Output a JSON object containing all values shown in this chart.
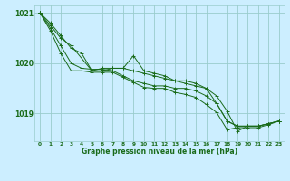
{
  "title": "Graphe pression niveau de la mer (hPa)",
  "bg_color": "#cceeff",
  "grid_color": "#99cccc",
  "line_color": "#1a6b1a",
  "xlim": [
    -0.5,
    23.5
  ],
  "ylim": [
    1018.45,
    1021.15
  ],
  "yticks": [
    1019,
    1020,
    1021
  ],
  "xtick_labels": [
    "0",
    "1",
    "2",
    "3",
    "4",
    "5",
    "6",
    "7",
    "8",
    "9",
    "10",
    "11",
    "12",
    "13",
    "14",
    "15",
    "16",
    "17",
    "18",
    "19",
    "20",
    "21",
    "22",
    "23"
  ],
  "series": [
    {
      "x": [
        0,
        1,
        2,
        3,
        4,
        5,
        6,
        7,
        8,
        9,
        10,
        11,
        12,
        13,
        14,
        15,
        16,
        17,
        18,
        19,
        20,
        21,
        22,
        23
      ],
      "y": [
        1021.0,
        1020.8,
        1020.55,
        1020.3,
        1020.2,
        1019.85,
        1019.9,
        1019.9,
        1019.9,
        1020.15,
        1019.85,
        1019.8,
        1019.75,
        1019.65,
        1019.6,
        1019.55,
        1019.5,
        1019.2,
        1018.85,
        1018.75,
        1018.75,
        1018.75,
        1018.8,
        1018.85
      ]
    },
    {
      "x": [
        0,
        1,
        2,
        3,
        5,
        6,
        7,
        8,
        9,
        10,
        11,
        12,
        13,
        14,
        15,
        16,
        17,
        18,
        19,
        20,
        21,
        22,
        23
      ],
      "y": [
        1021.0,
        1020.75,
        1020.5,
        1020.35,
        1019.85,
        1019.85,
        1019.9,
        1019.9,
        1019.85,
        1019.8,
        1019.75,
        1019.7,
        1019.65,
        1019.65,
        1019.6,
        1019.5,
        1019.35,
        1019.05,
        1018.65,
        1018.75,
        1018.75,
        1018.8,
        1018.85
      ]
    },
    {
      "x": [
        0,
        1,
        2,
        3,
        4,
        5,
        6,
        7,
        8,
        9,
        10,
        11,
        12,
        13,
        14,
        15,
        16,
        17,
        18,
        19,
        20,
        21,
        22,
        23
      ],
      "y": [
        1021.0,
        1020.7,
        1020.35,
        1020.0,
        1019.9,
        1019.88,
        1019.88,
        1019.85,
        1019.75,
        1019.65,
        1019.6,
        1019.55,
        1019.55,
        1019.5,
        1019.5,
        1019.45,
        1019.35,
        1019.2,
        1018.85,
        1018.75,
        1018.75,
        1018.75,
        1018.8,
        1018.85
      ]
    },
    {
      "x": [
        0,
        1,
        2,
        3,
        4,
        5,
        6,
        7,
        8,
        9,
        10,
        11,
        12,
        13,
        14,
        15,
        16,
        17,
        18,
        19,
        20,
        21,
        22,
        23
      ],
      "y": [
        1021.0,
        1020.65,
        1020.2,
        1019.85,
        1019.85,
        1019.82,
        1019.82,
        1019.82,
        1019.72,
        1019.62,
        1019.52,
        1019.5,
        1019.5,
        1019.42,
        1019.38,
        1019.32,
        1019.18,
        1019.02,
        1018.68,
        1018.72,
        1018.72,
        1018.72,
        1018.78,
        1018.85
      ]
    }
  ]
}
